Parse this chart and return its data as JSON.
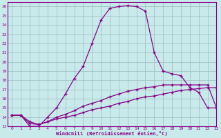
{
  "xlabel": "Windchill (Refroidissement éolien,°C)",
  "ylabel": "",
  "xlim": [
    -0.5,
    23
  ],
  "ylim": [
    13,
    26.5
  ],
  "yticks": [
    13,
    14,
    15,
    16,
    17,
    18,
    19,
    20,
    21,
    22,
    23,
    24,
    25,
    26
  ],
  "xticks": [
    0,
    1,
    2,
    3,
    4,
    5,
    6,
    7,
    8,
    9,
    10,
    11,
    12,
    13,
    14,
    15,
    16,
    17,
    18,
    19,
    20,
    21,
    22,
    23
  ],
  "bg_color": "#c8eaea",
  "line_color": "#880088",
  "grid_color": "#99bbbb",
  "line1_x": [
    0,
    1,
    2,
    3,
    4,
    5,
    6,
    7,
    8,
    9,
    10,
    11,
    12,
    13,
    14,
    15,
    16,
    17,
    18,
    19,
    20,
    21,
    22,
    23
  ],
  "line1_y": [
    14.2,
    14.2,
    13.0,
    13.0,
    14.0,
    15.0,
    16.5,
    18.2,
    19.5,
    22.0,
    24.5,
    25.8,
    26.0,
    26.1,
    26.0,
    25.5,
    21.0,
    19.0,
    18.7,
    18.5,
    17.2,
    16.7,
    15.0,
    15.0
  ],
  "line2_x": [
    0,
    1,
    2,
    3,
    4,
    5,
    6,
    7,
    8,
    9,
    10,
    11,
    12,
    13,
    14,
    15,
    16,
    17,
    18,
    19,
    20,
    21,
    22,
    23
  ],
  "line2_y": [
    14.2,
    14.2,
    13.3,
    13.2,
    13.5,
    14.0,
    14.3,
    14.7,
    15.2,
    15.5,
    15.8,
    16.2,
    16.5,
    16.8,
    17.0,
    17.2,
    17.3,
    17.5,
    17.5,
    17.5,
    17.5,
    17.5,
    17.5,
    15.0
  ],
  "line3_x": [
    0,
    1,
    2,
    3,
    4,
    5,
    6,
    7,
    8,
    9,
    10,
    11,
    12,
    13,
    14,
    15,
    16,
    17,
    18,
    19,
    20,
    21,
    22,
    23
  ],
  "line3_y": [
    14.2,
    14.2,
    13.5,
    13.2,
    13.5,
    13.8,
    14.0,
    14.2,
    14.5,
    14.8,
    15.0,
    15.2,
    15.5,
    15.7,
    16.0,
    16.2,
    16.3,
    16.5,
    16.7,
    16.9,
    17.0,
    17.1,
    17.2,
    17.2
  ]
}
